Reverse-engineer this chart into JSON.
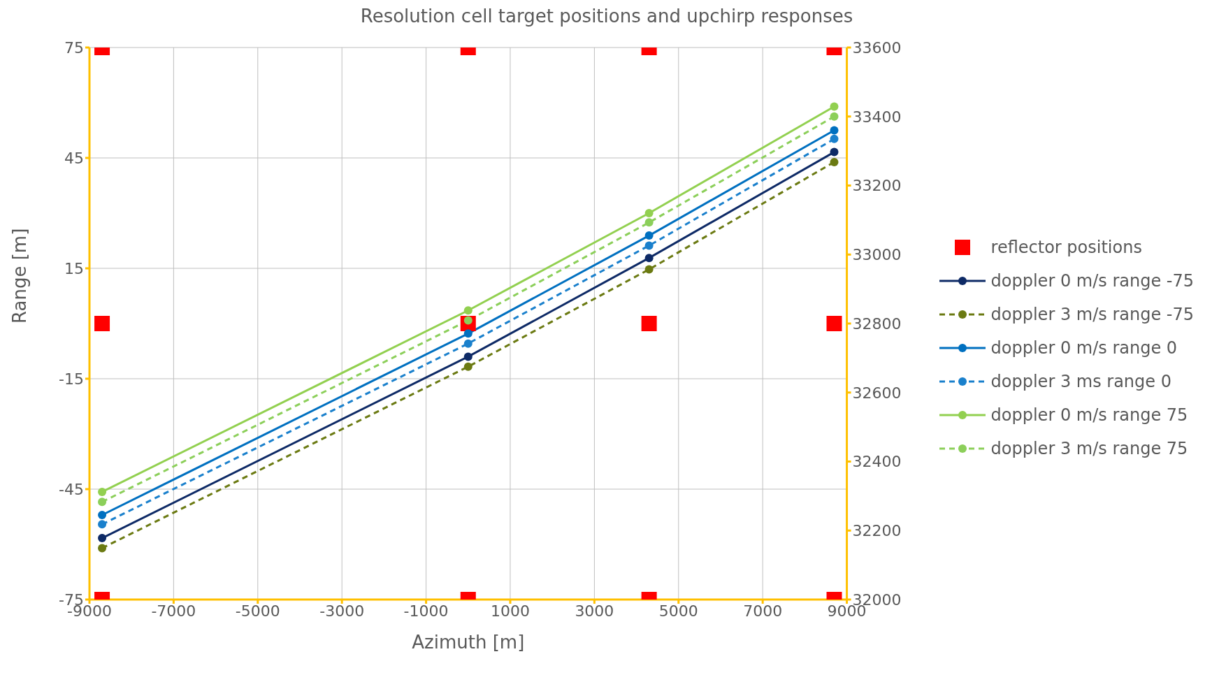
{
  "chart_data": {
    "type": "line",
    "title": "Resolution cell target positions and upchirp responses",
    "xlabel": "Azimuth [m]",
    "ylabel": "Range [m]",
    "xlim": [
      -9000,
      9000
    ],
    "xticks": [
      -9000,
      -7000,
      -5000,
      -3000,
      -1000,
      1000,
      3000,
      5000,
      7000,
      9000
    ],
    "ylim": [
      -75,
      75
    ],
    "yticks": [
      -75,
      -45,
      -15,
      15,
      45,
      75
    ],
    "y2lim": [
      32000,
      33600
    ],
    "y2ticks": [
      32000,
      32200,
      32400,
      32600,
      32800,
      33000,
      33200,
      33400,
      33600
    ],
    "grid": true,
    "legend": "right",
    "marker": "circle",
    "line_style": "solid",
    "series": [
      {
        "name": "reflector positions",
        "type": "scatter",
        "marker": "square",
        "color": "#ff0000",
        "x": [
          -8700,
          -8700,
          -8700,
          0,
          0,
          0,
          4300,
          4300,
          4300,
          8700,
          8700,
          8700
        ],
        "values": [
          75,
          0,
          -75,
          75,
          0,
          -75,
          75,
          0,
          -75,
          75,
          0,
          -75
        ]
      },
      {
        "name": "doppler 0 m/s range -75",
        "axis": "y2",
        "color": "#0e2a66",
        "x": [
          -8700,
          0,
          4300,
          8700
        ],
        "values": [
          32178,
          32704,
          32990,
          33297
        ]
      },
      {
        "name": "doppler 3 m/s range -75",
        "axis": "y2",
        "line_style": "dashed",
        "color": "#6b7a12",
        "x": [
          -8700,
          0,
          4300,
          8700
        ],
        "values": [
          32149,
          32675,
          32957,
          33268
        ]
      },
      {
        "name": "doppler 0 m/s range 0",
        "axis": "y2",
        "color": "#0070c0",
        "x": [
          -8700,
          0,
          4300,
          8700
        ],
        "values": [
          32245,
          32771,
          33055,
          33360
        ]
      },
      {
        "name": "doppler 3 ms range 0",
        "axis": "y2",
        "line_style": "dashed",
        "color": "#1a80cc",
        "x": [
          -8700,
          0,
          4300,
          8700
        ],
        "values": [
          32218,
          32742,
          33026,
          33335
        ]
      },
      {
        "name": "doppler 0 m/s range 75",
        "axis": "y2",
        "color": "#92d050",
        "x": [
          -8700,
          0,
          4300,
          8700
        ],
        "values": [
          32312,
          32838,
          33120,
          33429
        ]
      },
      {
        "name": "doppler 3 m/s range 75",
        "axis": "y2",
        "line_style": "dashed",
        "color": "#8ccf5a",
        "x": [
          -8700,
          0,
          4300,
          8700
        ],
        "values": [
          32283,
          32809,
          33093,
          33400
        ]
      }
    ]
  }
}
